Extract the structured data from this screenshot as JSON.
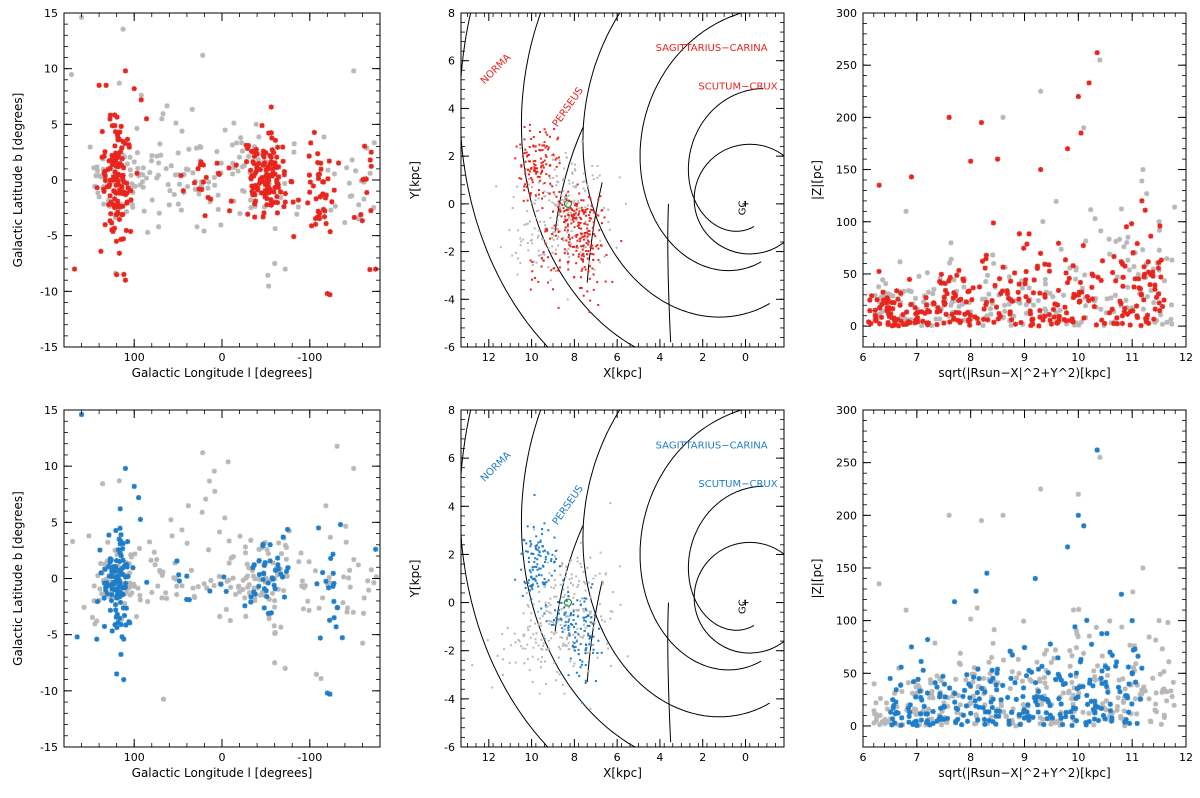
{
  "theme": {
    "red": "#e8241c",
    "blue": "#1e7dc8",
    "gray": "#b8b8b8",
    "axis": "#000000"
  },
  "chart_data": [
    {
      "type": "scatter",
      "highlight": "red",
      "xlabel": "Galactic Longitude l [degrees]",
      "ylabel": "Galactic Latitude b [degrees]",
      "xlim": [
        180,
        -180
      ],
      "ylim": [
        -15,
        15
      ],
      "xticks": [
        100,
        0,
        -100
      ],
      "xticklabels": [
        "100",
        "0",
        "-100"
      ],
      "yticks": [
        -15,
        -10,
        -5,
        0,
        5,
        10,
        15
      ],
      "yticklabels": [
        "-15",
        "-10",
        "-5",
        "0",
        "5",
        "10",
        "15"
      ],
      "series": [
        {
          "color": "gray",
          "clusters": [
            [
              80,
              0,
              25,
              1.6,
              40
            ],
            [
              -20,
              0,
              30,
              2,
              50
            ],
            [
              -150,
              -1,
              20,
              2,
              25
            ],
            [
              120,
              0,
              20,
              2,
              40
            ],
            [
              40,
              2,
              90,
              5,
              45
            ]
          ],
          "points": [
            [
              160,
              14.6
            ],
            [
              22,
              11.2
            ],
            [
              -150,
              9.8
            ],
            [
              117,
              8.7
            ],
            [
              -60,
              -7.5
            ],
            [
              -72,
              -8
            ]
          ]
        },
        {
          "color": "red",
          "clusters": [
            [
              120,
              0,
              8,
              2.5,
              130
            ],
            [
              -50,
              0,
              14,
              2,
              130
            ],
            [
              -110,
              -0.5,
              8,
              2,
              40
            ],
            [
              18,
              -0.3,
              20,
              1.2,
              20
            ],
            [
              -165,
              0,
              6,
              2,
              12
            ]
          ],
          "points": [
            [
              110,
              9.8
            ],
            [
              140,
              8.5
            ],
            [
              100,
              8.2
            ],
            [
              120,
              -8.5
            ],
            [
              110,
              -9
            ],
            [
              168,
              -8
            ],
            [
              -120,
              -10.2
            ],
            [
              -123,
              -10.3
            ],
            [
              -175,
              -8
            ],
            [
              -178,
              1.8
            ],
            [
              -170,
              2.5
            ],
            [
              86,
              5.5
            ],
            [
              92,
              7.2
            ],
            [
              132,
              8.5
            ]
          ]
        }
      ]
    },
    {
      "type": "scatter",
      "highlight": "red",
      "xlabel": "X[kpc]",
      "ylabel": "Y[kpc]",
      "xlim": [
        13.3,
        -1.8
      ],
      "ylim": [
        -6,
        8
      ],
      "xticks": [
        12,
        10,
        8,
        6,
        4,
        2,
        0
      ],
      "xticklabels": [
        "12",
        "10",
        "8",
        "6",
        "4",
        "2",
        "0"
      ],
      "yticks": [
        -6,
        -4,
        -2,
        0,
        2,
        4,
        6,
        8
      ],
      "yticklabels": [
        "-6",
        "-4",
        "-2",
        "0",
        "2",
        "4",
        "6",
        "8"
      ],
      "arms": [
        {
          "name": "NORMA",
          "color": "red",
          "label_at": [
            12.2,
            5.0
          ]
        },
        {
          "name": "PERSEUS",
          "color": "red",
          "label_at": [
            8.8,
            3.2
          ]
        },
        {
          "name": "SAGITTARIUS−CARINA",
          "color": "red",
          "label_at": [
            4.2,
            6.4
          ]
        },
        {
          "name": "SCUTUM−CRUX",
          "color": "red",
          "label_at": [
            2.2,
            4.8
          ]
        }
      ],
      "sun_label": "",
      "gc_label": "GC",
      "gc": [
        0,
        0
      ],
      "series": [
        {
          "color": "gray",
          "clusters": [
            [
              8.5,
              -0.3,
              1.0,
              1.3,
              200
            ],
            [
              9.6,
              -2.0,
              0.9,
              0.5,
              30
            ]
          ],
          "points": []
        },
        {
          "color": "red",
          "clusters": [
            [
              9.7,
              1.6,
              0.45,
              0.8,
              120
            ],
            [
              8.2,
              -0.5,
              0.5,
              0.6,
              100
            ],
            [
              7.5,
              -1.7,
              0.45,
              0.9,
              130
            ],
            [
              9.5,
              -2.6,
              0.6,
              0.6,
              25
            ]
          ],
          "points": []
        }
      ],
      "sun": [
        8.3,
        0
      ]
    },
    {
      "type": "scatter",
      "highlight": "red",
      "xlabel": "sqrt(|Rsun−X|^2+Y^2)[kpc]",
      "ylabel": "|Z|[pc]",
      "xlim": [
        6,
        12
      ],
      "ylim": [
        -20,
        300
      ],
      "xticks": [
        6,
        7,
        8,
        9,
        10,
        11,
        12
      ],
      "xticklabels": [
        "6",
        "7",
        "8",
        "9",
        "10",
        "11",
        "12"
      ],
      "yticks": [
        0,
        50,
        100,
        150,
        200,
        250,
        300
      ],
      "yticklabels": [
        "0",
        "50",
        "100",
        "150",
        "200",
        "250",
        "300"
      ],
      "series": [
        {
          "color": "gray",
          "zclusters": [
            [
              6.2,
              11.8,
              45,
              220
            ]
          ],
          "points": [
            [
              10.4,
              255
            ],
            [
              9.3,
              225
            ],
            [
              8.6,
              200
            ],
            [
              10.1,
              190
            ],
            [
              6.8,
              110
            ],
            [
              11.2,
              150
            ],
            [
              11.5,
              100
            ]
          ]
        },
        {
          "color": "red",
          "zclusters": [
            [
              6.1,
              11.6,
              40,
              320
            ]
          ],
          "points": [
            [
              10.35,
              262
            ],
            [
              10.2,
              233
            ],
            [
              10.0,
              220
            ],
            [
              10.05,
              185
            ],
            [
              9.8,
              170
            ],
            [
              7.6,
              200
            ],
            [
              8.2,
              195
            ],
            [
              8.5,
              160
            ],
            [
              6.3,
              135
            ],
            [
              6.9,
              143
            ],
            [
              8.0,
              158
            ],
            [
              9.3,
              150
            ]
          ]
        }
      ]
    },
    {
      "type": "scatter",
      "highlight": "blue",
      "xlabel": "Galactic Longitude l [degrees]",
      "ylabel": "Galactic Latitude b [degrees]",
      "xlim": [
        180,
        -180
      ],
      "ylim": [
        -15,
        15
      ],
      "xticks": [
        100,
        0,
        -100
      ],
      "xticklabels": [
        "100",
        "0",
        "-100"
      ],
      "yticks": [
        -15,
        -10,
        -5,
        0,
        5,
        10,
        15
      ],
      "yticklabels": [
        "-15",
        "-10",
        "-5",
        "0",
        "5",
        "10",
        "15"
      ],
      "series": [
        {
          "color": "gray",
          "clusters": [
            [
              80,
              0,
              25,
              1.6,
              40
            ],
            [
              -50,
              0,
              30,
              2,
              90
            ],
            [
              -150,
              -1,
              20,
              2,
              25
            ],
            [
              120,
              0,
              20,
              2,
              40
            ],
            [
              40,
              2,
              90,
              5,
              45
            ]
          ],
          "points": [
            [
              22,
              11.2
            ],
            [
              -150,
              9.8
            ],
            [
              117,
              8.7
            ],
            [
              -60,
              -7.5
            ],
            [
              -72,
              -8
            ]
          ]
        },
        {
          "color": "blue",
          "clusters": [
            [
              120,
              0,
              8,
              2.5,
              110
            ],
            [
              -55,
              0,
              14,
              2,
              40
            ],
            [
              -125,
              -0.5,
              8,
              2,
              15
            ],
            [
              20,
              -0.3,
              25,
              1.2,
              12
            ]
          ],
          "points": [
            [
              160,
              14.6
            ],
            [
              110,
              9.8
            ],
            [
              95,
              7.2
            ],
            [
              100,
              8.2
            ],
            [
              120,
              -8.5
            ],
            [
              112,
              -9
            ],
            [
              -120,
              -10.2
            ],
            [
              -123,
              -10.3
            ],
            [
              -135,
              4.8
            ],
            [
              -110,
              4.5
            ],
            [
              -175,
              2.6
            ],
            [
              165,
              -5.2
            ],
            [
              -112,
              -5.3
            ],
            [
              -130,
              -4.3
            ]
          ]
        }
      ]
    },
    {
      "type": "scatter",
      "highlight": "blue",
      "xlabel": "X[kpc]",
      "ylabel": "Y[kpc]",
      "xlim": [
        13.3,
        -1.8
      ],
      "ylim": [
        -6,
        8
      ],
      "xticks": [
        12,
        10,
        8,
        6,
        4,
        2,
        0
      ],
      "xticklabels": [
        "12",
        "10",
        "8",
        "6",
        "4",
        "2",
        "0"
      ],
      "yticks": [
        -6,
        -4,
        -2,
        0,
        2,
        4,
        6,
        8
      ],
      "yticklabels": [
        "-6",
        "-4",
        "-2",
        "0",
        "2",
        "4",
        "6",
        "8"
      ],
      "arms": [
        {
          "name": "NORMA",
          "color": "blue",
          "label_at": [
            12.2,
            5.0
          ]
        },
        {
          "name": "PERSEUS",
          "color": "blue",
          "label_at": [
            8.8,
            3.2
          ]
        },
        {
          "name": "SAGITTARIUS−CARINA",
          "color": "blue",
          "label_at": [
            4.2,
            6.4
          ]
        },
        {
          "name": "SCUTUM−CRUX",
          "color": "blue",
          "label_at": [
            2.2,
            4.8
          ]
        }
      ],
      "sun_label": "",
      "gc_label": "GC",
      "gc": [
        0,
        0
      ],
      "series": [
        {
          "color": "gray",
          "clusters": [
            [
              8.3,
              -0.5,
              1.0,
              1.3,
              220
            ],
            [
              9.8,
              -2.0,
              0.9,
              0.6,
              40
            ]
          ],
          "points": []
        },
        {
          "color": "blue",
          "clusters": [
            [
              9.7,
              1.6,
              0.45,
              0.8,
              110
            ],
            [
              8.2,
              -0.5,
              0.5,
              0.6,
              60
            ],
            [
              7.6,
              -1.7,
              0.4,
              0.8,
              60
            ]
          ],
          "points": []
        }
      ],
      "sun": [
        8.3,
        0
      ]
    },
    {
      "type": "scatter",
      "highlight": "blue",
      "xlabel": "sqrt(|Rsun−X|^2+Y^2)[kpc]",
      "ylabel": "|Z|[pc]",
      "xlim": [
        6,
        12
      ],
      "ylim": [
        -20,
        300
      ],
      "xticks": [
        6,
        7,
        8,
        9,
        10,
        11,
        12
      ],
      "xticklabels": [
        "6",
        "7",
        "8",
        "9",
        "10",
        "11",
        "12"
      ],
      "yticks": [
        0,
        50,
        100,
        150,
        200,
        250,
        300
      ],
      "yticklabels": [
        "0",
        "50",
        "100",
        "150",
        "200",
        "250",
        "300"
      ],
      "series": [
        {
          "color": "gray",
          "zclusters": [
            [
              6.2,
              11.8,
              45,
              300
            ]
          ],
          "points": [
            [
              10.4,
              255
            ],
            [
              10.35,
              262
            ],
            [
              9.3,
              225
            ],
            [
              8.6,
              200
            ],
            [
              10.1,
              190
            ],
            [
              7.6,
              200
            ],
            [
              8.2,
              195
            ],
            [
              6.8,
              110
            ],
            [
              11.2,
              150
            ],
            [
              11.5,
              100
            ],
            [
              10.0,
              220
            ],
            [
              6.3,
              135
            ]
          ]
        },
        {
          "color": "blue",
          "zclusters": [
            [
              6.5,
              11.2,
              35,
              260
            ]
          ],
          "points": [
            [
              10.35,
              262
            ],
            [
              10.0,
              200
            ],
            [
              10.1,
              190
            ],
            [
              9.8,
              170
            ],
            [
              9.2,
              140
            ],
            [
              8.3,
              145
            ],
            [
              7.7,
              118
            ],
            [
              8.1,
              128
            ],
            [
              10.8,
              125
            ],
            [
              11.0,
              100
            ],
            [
              6.9,
              75
            ],
            [
              7.2,
              82
            ]
          ]
        }
      ]
    }
  ]
}
